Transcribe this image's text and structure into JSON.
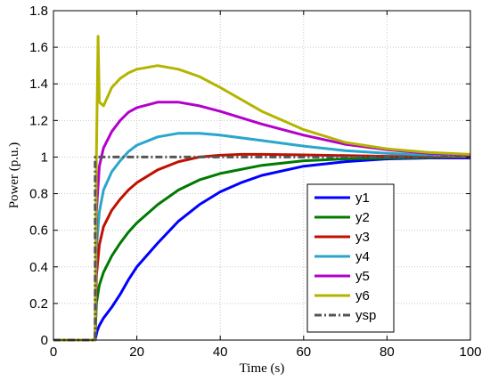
{
  "chart_data": {
    "type": "line",
    "title": "",
    "xlabel": "Time (s)",
    "ylabel": "Power (p.u.)",
    "xlim": [
      0,
      100
    ],
    "ylim": [
      0,
      1.8
    ],
    "xticks": [
      0,
      20,
      40,
      60,
      80,
      100
    ],
    "yticks": [
      0,
      0.2,
      0.4,
      0.6,
      0.8,
      1,
      1.2,
      1.4,
      1.6,
      1.8
    ],
    "grid": true,
    "legend_position": "bottom-right",
    "series": [
      {
        "name": "y1",
        "color": "#0000ff",
        "points": [
          [
            0,
            0
          ],
          [
            10,
            0
          ],
          [
            10.5,
            0.05
          ],
          [
            11,
            0.08
          ],
          [
            12,
            0.12
          ],
          [
            14,
            0.18
          ],
          [
            16,
            0.25
          ],
          [
            18,
            0.33
          ],
          [
            20,
            0.4
          ],
          [
            25,
            0.53
          ],
          [
            30,
            0.65
          ],
          [
            35,
            0.74
          ],
          [
            40,
            0.81
          ],
          [
            45,
            0.86
          ],
          [
            50,
            0.9
          ],
          [
            60,
            0.95
          ],
          [
            70,
            0.975
          ],
          [
            80,
            0.99
          ],
          [
            90,
            0.995
          ],
          [
            100,
            0.995
          ]
        ]
      },
      {
        "name": "y2",
        "color": "#007a00",
        "points": [
          [
            0,
            0
          ],
          [
            10,
            0
          ],
          [
            10.3,
            0.2
          ],
          [
            11,
            0.3
          ],
          [
            12,
            0.37
          ],
          [
            14,
            0.46
          ],
          [
            16,
            0.53
          ],
          [
            18,
            0.59
          ],
          [
            20,
            0.64
          ],
          [
            25,
            0.74
          ],
          [
            30,
            0.82
          ],
          [
            35,
            0.875
          ],
          [
            40,
            0.91
          ],
          [
            50,
            0.955
          ],
          [
            60,
            0.98
          ],
          [
            70,
            0.99
          ],
          [
            80,
            0.995
          ],
          [
            100,
            1.0
          ]
        ]
      },
      {
        "name": "y3",
        "color": "#c01000",
        "points": [
          [
            0,
            0
          ],
          [
            10,
            0
          ],
          [
            10.3,
            0.35
          ],
          [
            11,
            0.52
          ],
          [
            12,
            0.62
          ],
          [
            14,
            0.71
          ],
          [
            16,
            0.77
          ],
          [
            18,
            0.82
          ],
          [
            20,
            0.86
          ],
          [
            25,
            0.93
          ],
          [
            30,
            0.975
          ],
          [
            35,
            1.0
          ],
          [
            40,
            1.01
          ],
          [
            45,
            1.015
          ],
          [
            50,
            1.015
          ],
          [
            60,
            1.012
          ],
          [
            70,
            1.008
          ],
          [
            80,
            1.004
          ],
          [
            100,
            1.0
          ]
        ]
      },
      {
        "name": "y4",
        "color": "#2aa6cc",
        "points": [
          [
            0,
            0
          ],
          [
            10,
            0
          ],
          [
            10.3,
            0.5
          ],
          [
            11,
            0.7
          ],
          [
            12,
            0.82
          ],
          [
            14,
            0.92
          ],
          [
            16,
            0.98
          ],
          [
            18,
            1.03
          ],
          [
            20,
            1.065
          ],
          [
            25,
            1.11
          ],
          [
            30,
            1.13
          ],
          [
            35,
            1.13
          ],
          [
            40,
            1.12
          ],
          [
            50,
            1.09
          ],
          [
            60,
            1.06
          ],
          [
            70,
            1.035
          ],
          [
            80,
            1.02
          ],
          [
            90,
            1.01
          ],
          [
            100,
            1.005
          ]
        ]
      },
      {
        "name": "y5",
        "color": "#b400cc",
        "points": [
          [
            0,
            0
          ],
          [
            10,
            0
          ],
          [
            10.3,
            0.7
          ],
          [
            11,
            0.95
          ],
          [
            12,
            1.05
          ],
          [
            14,
            1.14
          ],
          [
            16,
            1.2
          ],
          [
            18,
            1.245
          ],
          [
            20,
            1.27
          ],
          [
            25,
            1.3
          ],
          [
            30,
            1.3
          ],
          [
            35,
            1.28
          ],
          [
            40,
            1.25
          ],
          [
            50,
            1.18
          ],
          [
            60,
            1.12
          ],
          [
            70,
            1.07
          ],
          [
            80,
            1.04
          ],
          [
            90,
            1.02
          ],
          [
            100,
            1.01
          ]
        ]
      },
      {
        "name": "y6",
        "color": "#b4b400",
        "points": [
          [
            0,
            0
          ],
          [
            10,
            0
          ],
          [
            10.3,
            1.0
          ],
          [
            10.7,
            1.66
          ],
          [
            11,
            1.3
          ],
          [
            12,
            1.28
          ],
          [
            14,
            1.38
          ],
          [
            16,
            1.43
          ],
          [
            18,
            1.46
          ],
          [
            20,
            1.48
          ],
          [
            25,
            1.5
          ],
          [
            30,
            1.48
          ],
          [
            35,
            1.44
          ],
          [
            40,
            1.38
          ],
          [
            50,
            1.25
          ],
          [
            60,
            1.15
          ],
          [
            70,
            1.08
          ],
          [
            80,
            1.045
          ],
          [
            90,
            1.025
          ],
          [
            100,
            1.015
          ]
        ]
      },
      {
        "name": "ysp",
        "color": "#555555",
        "dash": true,
        "points": [
          [
            0,
            0
          ],
          [
            10,
            0
          ],
          [
            10,
            1
          ],
          [
            100,
            1
          ]
        ]
      }
    ]
  }
}
